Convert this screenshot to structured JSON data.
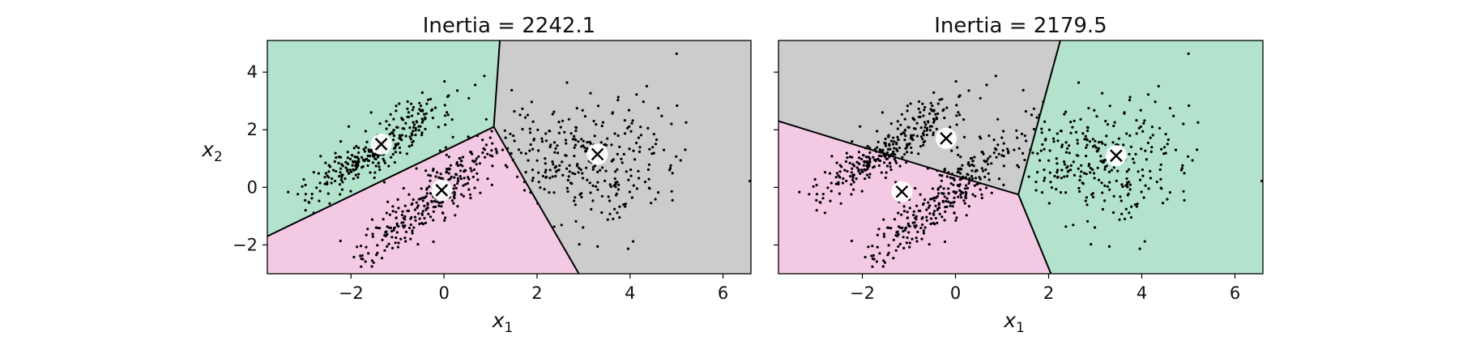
{
  "chart_data": [
    {
      "type": "scatter",
      "title": "Inertia = 2242.1",
      "xlabel": "x",
      "xlabel_sub": "1",
      "ylabel": "x",
      "ylabel_sub": "2",
      "xlim": [
        -3.8,
        6.6
      ],
      "ylim": [
        -3.0,
        5.1
      ],
      "xticks": [
        -2,
        0,
        2,
        4,
        6
      ],
      "yticks": [
        -2,
        0,
        2,
        4
      ],
      "xtick_labels": [
        "−2",
        "0",
        "2",
        "4",
        "6"
      ],
      "ytick_labels": [
        "−2",
        "0",
        "2",
        "4"
      ],
      "show_ytick_labels": true,
      "grid": false,
      "region_colors": [
        "#b3e3cd",
        "#f4c9e3",
        "#cccccc"
      ],
      "regions": [
        [
          [
            -3.8,
            5.1
          ],
          [
            -3.8,
            -1.7
          ],
          [
            1.07,
            2.1
          ],
          [
            1.2,
            5.1
          ]
        ],
        [
          [
            -3.8,
            -1.7
          ],
          [
            1.07,
            2.1
          ],
          [
            2.9,
            -3.0
          ],
          [
            -3.8,
            -3.0
          ]
        ],
        [
          [
            1.2,
            5.1
          ],
          [
            1.07,
            2.1
          ],
          [
            2.9,
            -3.0
          ],
          [
            6.6,
            -3.0
          ],
          [
            6.6,
            5.1
          ]
        ]
      ],
      "boundaries": [
        [
          [
            -3.8,
            -1.7
          ],
          [
            1.07,
            2.1
          ]
        ],
        [
          [
            1.07,
            2.1
          ],
          [
            1.2,
            5.1
          ]
        ],
        [
          [
            1.07,
            2.1
          ],
          [
            2.9,
            -3.0
          ]
        ]
      ],
      "centroids": [
        {
          "x": -1.35,
          "y": 1.5
        },
        {
          "x": -0.05,
          "y": -0.1
        },
        {
          "x": 3.3,
          "y": 1.15
        }
      ],
      "point_clusters": [
        {
          "cx": -1.4,
          "cy": 1.4,
          "sx": 0.75,
          "sy": 0.9,
          "corr": 0.88,
          "n": 300
        },
        {
          "cx": -0.3,
          "cy": -0.4,
          "sx": 0.75,
          "sy": 1.05,
          "corr": 0.88,
          "n": 300
        },
        {
          "cx": 3.2,
          "cy": 1.0,
          "sx": 1.0,
          "sy": 1.05,
          "corr": 0.05,
          "n": 300
        }
      ],
      "point_seed": 7
    },
    {
      "type": "scatter",
      "title": "Inertia = 2179.5",
      "xlabel": "x",
      "xlabel_sub": "1",
      "ylabel": "",
      "ylabel_sub": "",
      "xlim": [
        -3.8,
        6.6
      ],
      "ylim": [
        -3.0,
        5.1
      ],
      "xticks": [
        -2,
        0,
        2,
        4,
        6
      ],
      "yticks": [
        -2,
        0,
        2,
        4
      ],
      "xtick_labels": [
        "−2",
        "0",
        "2",
        "4",
        "6"
      ],
      "ytick_labels": [
        "",
        "",
        "",
        ""
      ],
      "show_ytick_labels": false,
      "grid": false,
      "region_colors": [
        "#f4c9e3",
        "#cccccc",
        "#b3e3cd"
      ],
      "regions": [
        [
          [
            -3.8,
            2.3
          ],
          [
            -0.1,
            0.45
          ],
          [
            1.35,
            -0.25
          ],
          [
            2.05,
            -3.0
          ],
          [
            -3.8,
            -3.0
          ]
        ],
        [
          [
            -3.8,
            5.1
          ],
          [
            -3.8,
            2.3
          ],
          [
            -0.1,
            0.45
          ],
          [
            1.35,
            -0.25
          ],
          [
            2.25,
            5.1
          ]
        ],
        [
          [
            2.25,
            5.1
          ],
          [
            1.35,
            -0.25
          ],
          [
            2.05,
            -3.0
          ],
          [
            6.6,
            -3.0
          ],
          [
            6.6,
            5.1
          ]
        ]
      ],
      "boundaries": [
        [
          [
            -3.8,
            2.3
          ],
          [
            -0.1,
            0.45
          ]
        ],
        [
          [
            -0.1,
            0.45
          ],
          [
            1.35,
            -0.25
          ]
        ],
        [
          [
            1.35,
            -0.25
          ],
          [
            2.25,
            5.1
          ]
        ],
        [
          [
            1.35,
            -0.25
          ],
          [
            2.05,
            -3.0
          ]
        ]
      ],
      "centroids": [
        {
          "x": -1.15,
          "y": -0.15
        },
        {
          "x": -0.2,
          "y": 1.7
        },
        {
          "x": 3.45,
          "y": 1.1
        }
      ],
      "point_clusters": [
        {
          "cx": -1.4,
          "cy": 1.4,
          "sx": 0.75,
          "sy": 0.9,
          "corr": 0.88,
          "n": 300
        },
        {
          "cx": -0.3,
          "cy": -0.4,
          "sx": 0.75,
          "sy": 1.05,
          "corr": 0.88,
          "n": 300
        },
        {
          "cx": 3.2,
          "cy": 1.0,
          "sx": 1.0,
          "sy": 1.05,
          "corr": 0.05,
          "n": 300
        }
      ],
      "point_seed": 7
    }
  ]
}
